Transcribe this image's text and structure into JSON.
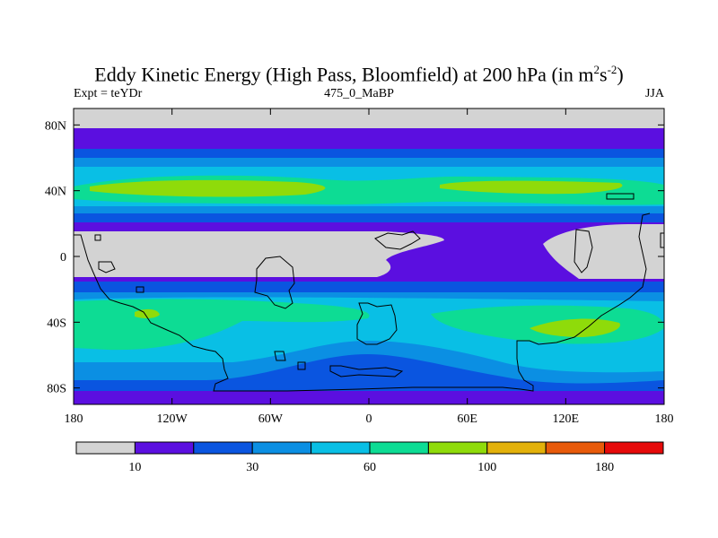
{
  "title": {
    "main": "Eddy Kinetic Energy (High Pass, Bloomfield) at 200 hPa (in m",
    "sup1": "2",
    "mid": "s",
    "sup2": "-2",
    "close": ")"
  },
  "subtitle_left": "Expt = teYDr",
  "subtitle_center": "475_0_MaBP",
  "subtitle_right": "JJA",
  "axes": {
    "y_ticks": [
      {
        "label": "80N",
        "lat": 80
      },
      {
        "label": "40N",
        "lat": 40
      },
      {
        "label": "0",
        "lat": 0
      },
      {
        "label": "40S",
        "lat": -40
      },
      {
        "label": "80S",
        "lat": -80
      }
    ],
    "x_ticks": [
      {
        "label": "180",
        "lon": -180
      },
      {
        "label": "120W",
        "lon": -120
      },
      {
        "label": "60W",
        "lon": -60
      },
      {
        "label": "0",
        "lon": 0
      },
      {
        "label": "60E",
        "lon": 60
      },
      {
        "label": "120E",
        "lon": 120
      },
      {
        "label": "180",
        "lon": 180
      }
    ],
    "lon_range": [
      -180,
      180
    ],
    "lat_range": [
      -90,
      90
    ]
  },
  "colorbar": {
    "colors": [
      "#d3d3d3",
      "#5b0fe0",
      "#0a55e0",
      "#0b8fe3",
      "#09bfe5",
      "#0ddc94",
      "#8fdb0a",
      "#e3b10a",
      "#e85a0a",
      "#e60a0a"
    ],
    "labels": [
      {
        "text": "10",
        "edge": 1
      },
      {
        "text": "30",
        "edge": 3
      },
      {
        "text": "60",
        "edge": 5
      },
      {
        "text": "100",
        "edge": 7
      },
      {
        "text": "180",
        "edge": 9
      }
    ]
  }
}
